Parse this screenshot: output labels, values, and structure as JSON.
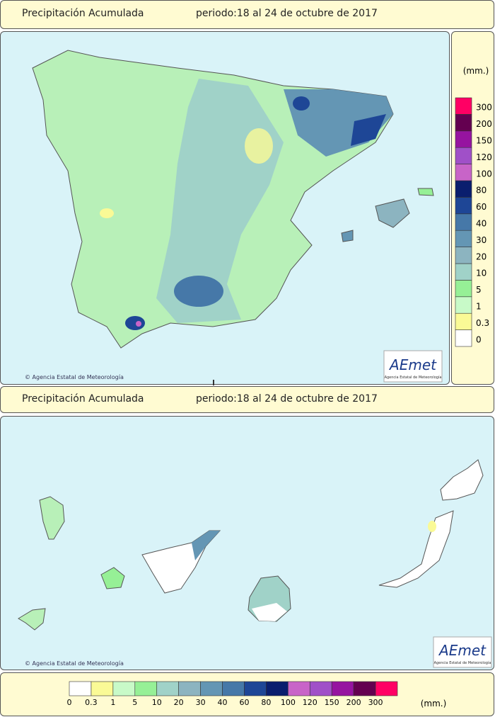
{
  "map1": {
    "header": {
      "title": "Precipitación Acumulada",
      "period": "periodo:18 al 24 de octubre de 2017"
    },
    "credit": "© Agencia Estatal de Meteorología",
    "logo": {
      "name": "AEmet",
      "subtitle": "Agencia Estatal de Meteorología"
    },
    "legend": {
      "unit": "(mm.)",
      "levels": [
        0,
        0.3,
        1,
        5,
        10,
        20,
        30,
        40,
        60,
        80,
        100,
        120,
        150,
        200,
        300
      ],
      "colors": [
        "#ffffff",
        "#fafa96",
        "#c8fac8",
        "#96f096",
        "#a0d2c8",
        "#8cb4c0",
        "#6496b4",
        "#4678a8",
        "#1e4696",
        "#0a1e6e",
        "#c864c8",
        "#a050c8",
        "#9614a0",
        "#640050",
        "#ff0064"
      ]
    }
  },
  "map2": {
    "header": {
      "title": "Precipitación Acumulada",
      "period": "periodo:18 al 24 de octubre de 2017"
    },
    "credit": "© Agencia Estatal de Meteorología",
    "logo": {
      "name": "AEmet",
      "subtitle": "Agencia Estatal de Meteorología"
    },
    "legend": {
      "unit": "(mm.)",
      "levels": [
        0,
        0.3,
        1,
        5,
        10,
        20,
        30,
        40,
        60,
        80,
        100,
        120,
        150,
        200,
        300
      ],
      "colors": [
        "#ffffff",
        "#fafa96",
        "#c8fac8",
        "#96f096",
        "#a0d2c8",
        "#8cb4c0",
        "#6496b4",
        "#4678a8",
        "#1e4696",
        "#0a1e6e",
        "#c864c8",
        "#a050c8",
        "#9614a0",
        "#640050",
        "#ff0064"
      ]
    }
  }
}
